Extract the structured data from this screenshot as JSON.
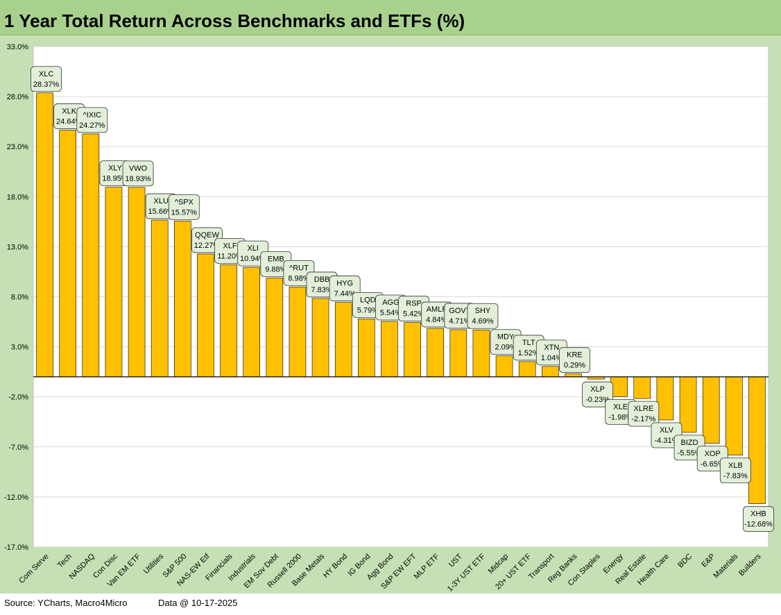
{
  "title": "1 Year Total Return Across Benchmarks and ETFs (%)",
  "footer": {
    "source": "Source: YCharts, Macro4Micro",
    "data_date": "Data @ 10-17-2025"
  },
  "colors": {
    "title_bg": "#a9d18e",
    "chart_bg": "#c5e0b4",
    "plot_bg": "#ffffff",
    "bar": "#ffc000",
    "bar_border": "#000000",
    "label_bg": "#e2efd9",
    "gridline": "#d9d9d9"
  },
  "chart_data": {
    "type": "bar",
    "title": "1 Year Total Return Across Benchmarks and ETFs (%)",
    "ylim": [
      -17,
      33
    ],
    "yticks": [
      33,
      28,
      23,
      18,
      13,
      8,
      3,
      -2,
      -7,
      -12,
      -17
    ],
    "ytick_labels": [
      "33.0%",
      "28.0%",
      "23.0%",
      "18.0%",
      "13.0%",
      "8.0%",
      "3.0%",
      "-2.0%",
      "-7.0%",
      "-12.0%",
      "-17.0%"
    ],
    "grid": true,
    "categories": [
      "Com Serve",
      "Tech",
      "NASDAQ",
      "Con Disc",
      "Van EM ETF",
      "Utilities",
      "S&P 500",
      "NAS-EW Etf",
      "Financials",
      "Industrials",
      "EM Sov Debt",
      "Russell 2000",
      "Base Metals",
      "HY Bond",
      "IG Bond",
      "Agg Bond",
      "S&P EW EFT",
      "MLP ETF",
      "UST",
      "1-3Y UST ETF",
      "Midcap",
      "20+ UST ETF",
      "Transport",
      "Reg Banks",
      "Con Staples",
      "Energy",
      "Real Estate",
      "Health Care",
      "BDC",
      "E&P",
      "Materials",
      "Builders"
    ],
    "tickers": [
      "XLC",
      "XLK",
      "^IXIC",
      "XLY",
      "VWO",
      "XLU",
      "^SPX",
      "QQEW",
      "XLF",
      "XLI",
      "EMB",
      "^RUT",
      "DBB",
      "HYG",
      "LQD",
      "AGG",
      "RSP",
      "AMLP",
      "GOVT",
      "SHY",
      "MDY",
      "TLT",
      "XTN",
      "KRE",
      "XLP",
      "XLE",
      "XLRE",
      "XLV",
      "BIZD",
      "XOP",
      "XLB",
      "XHB"
    ],
    "values": [
      28.37,
      24.64,
      24.27,
      18.95,
      18.93,
      15.66,
      15.57,
      12.27,
      11.2,
      10.94,
      9.88,
      8.98,
      7.83,
      7.44,
      5.79,
      5.54,
      5.42,
      4.84,
      4.71,
      4.69,
      2.09,
      1.52,
      1.04,
      0.29,
      -0.23,
      -1.98,
      -2.17,
      -4.31,
      -5.55,
      -6.65,
      -7.83,
      -12.68
    ],
    "data_labels": [
      "28.37%",
      "24.64%",
      "24.27%",
      "18.95%",
      "18.93%",
      "15.66%",
      "15.57%",
      "12.27%",
      "11.20%",
      "10.94%",
      "9.88%",
      "8.98%",
      "7.83%",
      "7.44%",
      "5.79%",
      "5.54%",
      "5.42%",
      "4.84%",
      "4.71%",
      "4.69%",
      "2.09%",
      "1.52%",
      "1.04%",
      "0.29%",
      "-0.23%",
      "-1.98%",
      "-2.17%",
      "-4.31%",
      "-5.55%",
      "-6.65%",
      "-7.83%",
      "-12.68%"
    ]
  }
}
